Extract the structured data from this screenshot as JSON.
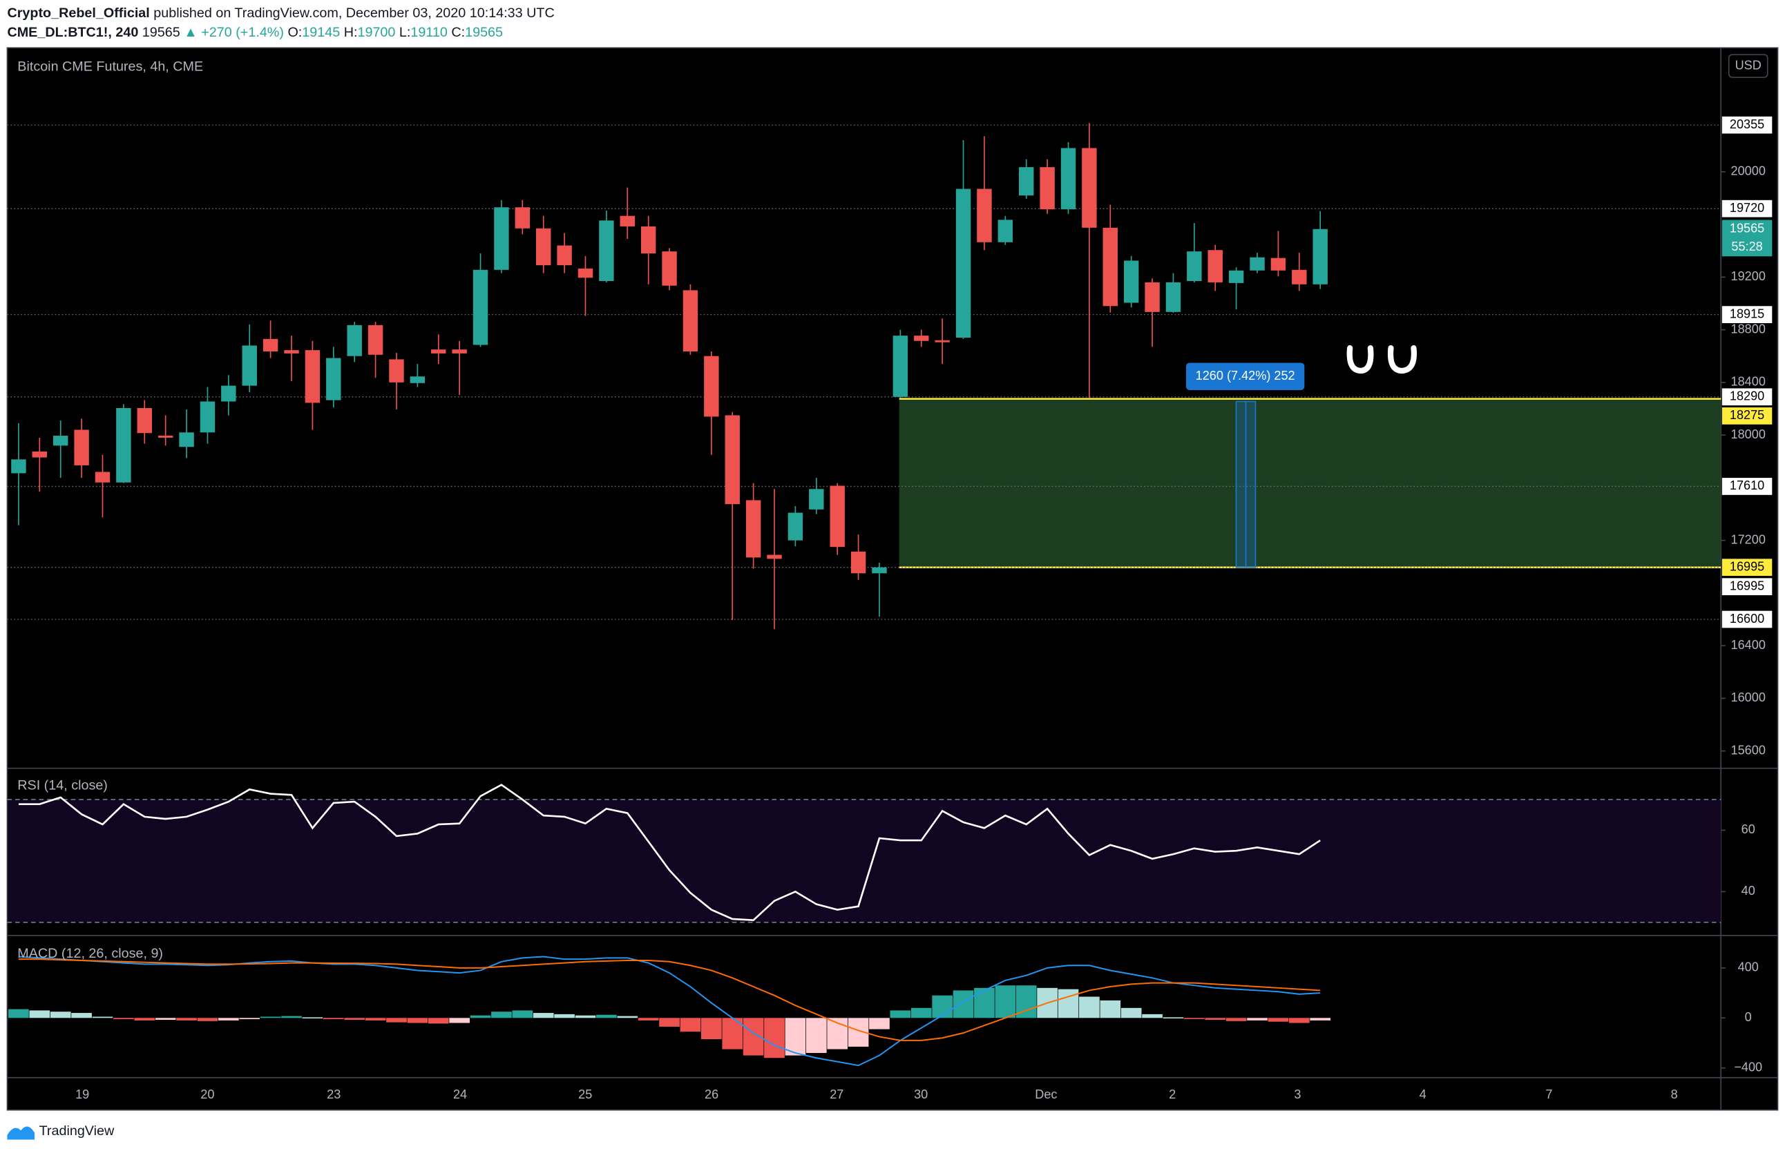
{
  "header": {
    "author": "Crypto_Rebel_Official",
    "published": "published on TradingView.com, December 03, 2020 10:14:33 UTC",
    "symbol": "CME_DL:BTC1!, 240",
    "price": "19565",
    "change": "▲ +270 (+1.4%)",
    "o_label": "O:",
    "o": "19145",
    "h_label": "H:",
    "h": "19700",
    "l_label": "L:",
    "l": "19110",
    "c_label": "C:",
    "c": "19565"
  },
  "footer": {
    "brand": "TradingView"
  },
  "chart_data": [
    {
      "type": "candlestick",
      "title": "Bitcoin CME Futures, 4h, CME",
      "currency": "USD",
      "x_labels": [
        "19",
        "20",
        "23",
        "24",
        "25",
        "26",
        "27",
        "30",
        "Dec",
        "2",
        "3",
        "4",
        "7",
        "8"
      ],
      "open": [
        17710,
        17875,
        17920,
        18040,
        17720,
        17640,
        18205,
        17995,
        17910,
        18020,
        18255,
        18375,
        18730,
        18645,
        18645,
        18265,
        18600,
        18835,
        18575,
        18395,
        18650,
        18650,
        18685,
        19255,
        19730,
        19570,
        19440,
        19265,
        19170,
        19665,
        19585,
        19395,
        19100,
        18600,
        18150,
        17505,
        17090,
        17200,
        17435,
        17615,
        17115,
        16950,
        18290,
        18755,
        18720,
        18740,
        19870,
        19465,
        19820,
        20035,
        19715,
        20180,
        19575,
        19005,
        19160,
        18935,
        19170,
        19405,
        19155,
        19250,
        19345,
        19255,
        19145
      ],
      "high": [
        18090,
        17980,
        18110,
        18125,
        17850,
        18235,
        18265,
        18150,
        18195,
        18365,
        18455,
        18840,
        18870,
        18755,
        18715,
        18670,
        18860,
        18860,
        18625,
        18540,
        18765,
        18715,
        19380,
        19785,
        19785,
        19665,
        19535,
        19360,
        19705,
        19880,
        19665,
        19420,
        19145,
        18635,
        18175,
        17635,
        17590,
        17460,
        17675,
        17635,
        17245,
        17030,
        18800,
        18800,
        18885,
        20240,
        20270,
        19665,
        20095,
        20095,
        20225,
        20370,
        19750,
        19360,
        19190,
        19230,
        19610,
        19445,
        19275,
        19385,
        19550,
        19385,
        19700
      ],
      "low": [
        17315,
        17570,
        17675,
        17675,
        17375,
        17635,
        17935,
        17920,
        17825,
        17935,
        18150,
        18325,
        18585,
        18410,
        18040,
        18210,
        18555,
        18435,
        18195,
        18365,
        18540,
        18305,
        18670,
        19230,
        19525,
        19230,
        19230,
        18905,
        19160,
        19490,
        19145,
        19100,
        18610,
        17850,
        16595,
        16985,
        16525,
        17155,
        17400,
        17090,
        16900,
        16620,
        18280,
        18670,
        18540,
        18730,
        19405,
        19445,
        19795,
        19680,
        19680,
        18280,
        18930,
        18970,
        18670,
        18930,
        19160,
        19095,
        18955,
        19230,
        19205,
        19095,
        19110
      ],
      "close": [
        17815,
        17830,
        17995,
        17770,
        17640,
        18205,
        18015,
        17980,
        18020,
        18255,
        18375,
        18680,
        18635,
        18620,
        18245,
        18585,
        18835,
        18610,
        18400,
        18445,
        18620,
        18620,
        19255,
        19730,
        19570,
        19290,
        19290,
        19195,
        19630,
        19585,
        19380,
        19135,
        18635,
        18140,
        17475,
        17070,
        17060,
        17410,
        17590,
        17150,
        16950,
        16995,
        18755,
        18715,
        18705,
        19870,
        19465,
        19635,
        20035,
        19715,
        20180,
        19575,
        18980,
        19325,
        18935,
        19160,
        19395,
        19160,
        19250,
        19350,
        19250,
        19145,
        19565
      ],
      "up_color": "#26a69a",
      "down_color": "#ef5350",
      "ylim": [
        15473,
        20942
      ],
      "yticks": [
        15600,
        16000,
        16400,
        17200,
        18000,
        18400,
        18800,
        19200,
        20000
      ],
      "levels": [
        20355,
        19720,
        18915,
        18290,
        17610,
        16995,
        16600
      ],
      "zone": {
        "top": 18275,
        "bottom": 16995,
        "color": "#1c3d1f",
        "line_color": "#ffeb3b"
      },
      "last_price": 19565,
      "countdown": "55:28",
      "measure": {
        "from": 16995,
        "to": 18255,
        "label": "1260 (7.42%) 252",
        "color": "#1976d2"
      }
    },
    {
      "type": "line",
      "legend": "RSI (14, close)",
      "values": [
        68.5,
        68.5,
        70.7,
        65.2,
        61.9,
        68.5,
        64.4,
        63.7,
        64.4,
        66.7,
        69.3,
        73.3,
        71.9,
        71.5,
        60.7,
        68.9,
        69.3,
        64.4,
        58.1,
        58.9,
        61.9,
        62.2,
        71.1,
        74.8,
        70.0,
        64.8,
        64.4,
        62.2,
        67.0,
        65.6,
        56.3,
        47.0,
        39.6,
        34.1,
        31.1,
        30.7,
        37.0,
        40.0,
        35.9,
        34.1,
        35.2,
        57.4,
        56.7,
        56.7,
        66.3,
        62.6,
        60.7,
        64.8,
        61.9,
        67.0,
        58.9,
        51.9,
        55.2,
        53.3,
        50.7,
        52.2,
        54.1,
        53.0,
        53.3,
        54.4,
        53.3,
        52.2,
        56.7
      ],
      "color": "#ffffff",
      "ylim": [
        25.9,
        80
      ],
      "yticks": [
        40,
        60
      ],
      "band": [
        30,
        70
      ],
      "band_color": "#120521"
    },
    {
      "type": "macd",
      "legend": "MACD (12, 26, close, 9)",
      "histogram": [
        70,
        60,
        50,
        40,
        10,
        -10,
        -20,
        -15,
        -20,
        -25,
        -20,
        -10,
        10,
        15,
        5,
        -10,
        -15,
        -20,
        -35,
        -40,
        -45,
        -40,
        20,
        50,
        60,
        40,
        30,
        20,
        25,
        15,
        -20,
        -70,
        -110,
        -170,
        -250,
        -300,
        -320,
        -300,
        -280,
        -250,
        -230,
        -90,
        60,
        80,
        180,
        220,
        240,
        260,
        260,
        240,
        230,
        170,
        140,
        80,
        30,
        5,
        -5,
        -15,
        -25,
        -20,
        -30,
        -40,
        -20
      ],
      "macd": [
        490,
        480,
        470,
        460,
        450,
        440,
        430,
        430,
        425,
        420,
        425,
        440,
        450,
        455,
        440,
        430,
        430,
        420,
        400,
        380,
        370,
        360,
        380,
        450,
        480,
        490,
        470,
        470,
        480,
        480,
        440,
        360,
        250,
        120,
        0,
        -120,
        -220,
        -280,
        -320,
        -350,
        -380,
        -300,
        -180,
        -80,
        20,
        130,
        220,
        300,
        340,
        400,
        420,
        420,
        380,
        350,
        320,
        280,
        260,
        240,
        230,
        220,
        210,
        190,
        200
      ],
      "signal": [
        470,
        470,
        465,
        460,
        455,
        450,
        445,
        440,
        435,
        430,
        430,
        432,
        435,
        440,
        440,
        438,
        437,
        435,
        430,
        420,
        410,
        400,
        400,
        410,
        420,
        430,
        440,
        450,
        455,
        460,
        460,
        450,
        420,
        380,
        320,
        250,
        180,
        100,
        30,
        -40,
        -100,
        -150,
        -180,
        -180,
        -160,
        -120,
        -60,
        0,
        60,
        120,
        170,
        220,
        250,
        270,
        280,
        280,
        280,
        270,
        260,
        250,
        240,
        230,
        220
      ],
      "macd_color": "#2196f3",
      "signal_color": "#ff6d00",
      "hist_colors": [
        "#26a69a",
        "#b2dfdb",
        "#ffcdd2",
        "#ef5350"
      ],
      "ylim": [
        -473,
        655
      ],
      "yticks": [
        {
          "value": -400,
          "label": "−400"
        },
        0,
        400
      ]
    }
  ]
}
